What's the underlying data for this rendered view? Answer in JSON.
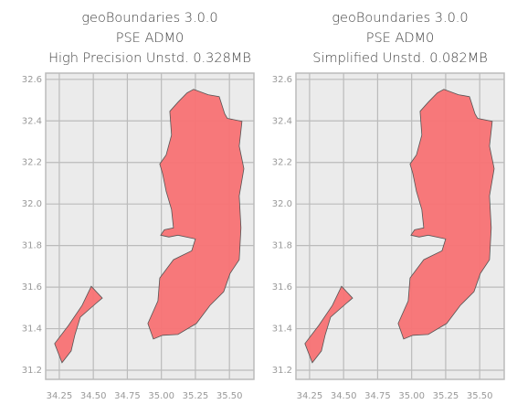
{
  "chart_data": [
    {
      "type": "map",
      "title": [
        "geoBoundaries 3.0.0",
        "PSE ADM0",
        "High Precision Unstd. 0.328MB"
      ],
      "color": "#f87274",
      "edge_color": "#555555",
      "grid": true,
      "xlim": [
        34.15,
        35.68
      ],
      "ylim": [
        31.156,
        32.63
      ],
      "xticks": [
        34.25,
        {
          "value": 34.5,
          "label": "34.50"
        },
        34.75,
        {
          "value": 35,
          "label": "35.00"
        },
        35.25,
        {
          "value": 35.5,
          "label": "35.50"
        }
      ],
      "yticks": [
        31.2,
        31.4,
        31.6,
        31.8,
        {
          "value": 32,
          "label": "32.0"
        },
        32.2,
        32.4,
        32.6
      ],
      "shapes": [
        {
          "x": [
            35.237,
            35.344,
            35.425,
            35.465,
            35.485,
            35.592,
            35.572,
            35.606,
            35.572,
            35.585,
            35.572,
            35.505,
            35.458,
            35.357,
            35.257,
            35.122,
            35.008,
            34.941,
            34.901,
            34.975,
            34.988,
            35.089,
            35.223,
            35.25,
            35.122,
            35.055,
            34.995,
            35.022,
            35.089,
            35.075,
            35.035,
            35.008,
            34.988,
            35.035,
            35.075,
            35.062,
            35.122,
            35.189
          ],
          "y": [
            32.552,
            32.526,
            32.517,
            32.434,
            32.412,
            32.398,
            32.279,
            32.17,
            32.039,
            31.885,
            31.732,
            31.666,
            31.578,
            31.512,
            31.425,
            31.372,
            31.368,
            31.35,
            31.425,
            31.534,
            31.644,
            31.732,
            31.775,
            31.832,
            31.85,
            31.841,
            31.85,
            31.876,
            31.885,
            31.973,
            32.061,
            32.148,
            32.192,
            32.236,
            32.332,
            32.446,
            32.49,
            32.535
          ]
        },
        {
          "x": [
            34.485,
            34.566,
            34.519,
            34.404,
            34.364,
            34.337,
            34.27,
            34.216,
            34.317,
            34.418
          ],
          "y": [
            31.604,
            31.547,
            31.521,
            31.455,
            31.368,
            31.293,
            31.236,
            31.328,
            31.415,
            31.512
          ]
        }
      ]
    },
    {
      "type": "map",
      "title": [
        "geoBoundaries 3.0.0",
        "PSE ADM0",
        "Simplified Unstd. 0.082MB"
      ],
      "color": "#f87274",
      "edge_color": "#555555",
      "grid": true,
      "xlim": [
        34.15,
        35.68
      ],
      "ylim": [
        31.156,
        32.63
      ],
      "xticks": [
        34.25,
        {
          "value": 34.5,
          "label": "34.50"
        },
        34.75,
        {
          "value": 35,
          "label": "35.00"
        },
        35.25,
        {
          "value": 35.5,
          "label": "35.50"
        }
      ],
      "yticks": [
        31.2,
        31.4,
        31.6,
        31.8,
        {
          "value": 32,
          "label": "32.0"
        },
        32.2,
        32.4,
        32.6
      ],
      "shapes": [
        {
          "x": [
            35.237,
            35.344,
            35.425,
            35.465,
            35.485,
            35.592,
            35.572,
            35.606,
            35.572,
            35.585,
            35.572,
            35.505,
            35.458,
            35.357,
            35.257,
            35.122,
            35.008,
            34.941,
            34.901,
            34.975,
            34.988,
            35.089,
            35.223,
            35.25,
            35.122,
            35.055,
            34.995,
            35.022,
            35.089,
            35.075,
            35.035,
            35.008,
            34.988,
            35.035,
            35.075,
            35.062,
            35.122,
            35.189
          ],
          "y": [
            32.552,
            32.526,
            32.517,
            32.434,
            32.412,
            32.398,
            32.279,
            32.17,
            32.039,
            31.885,
            31.732,
            31.666,
            31.578,
            31.512,
            31.425,
            31.372,
            31.368,
            31.35,
            31.425,
            31.534,
            31.644,
            31.732,
            31.775,
            31.832,
            31.85,
            31.841,
            31.85,
            31.876,
            31.885,
            31.973,
            32.061,
            32.148,
            32.192,
            32.236,
            32.332,
            32.446,
            32.49,
            32.535
          ]
        },
        {
          "x": [
            34.485,
            34.566,
            34.519,
            34.404,
            34.364,
            34.337,
            34.27,
            34.216,
            34.317,
            34.418
          ],
          "y": [
            31.604,
            31.547,
            31.521,
            31.455,
            31.368,
            31.293,
            31.236,
            31.328,
            31.415,
            31.512
          ]
        }
      ]
    }
  ]
}
